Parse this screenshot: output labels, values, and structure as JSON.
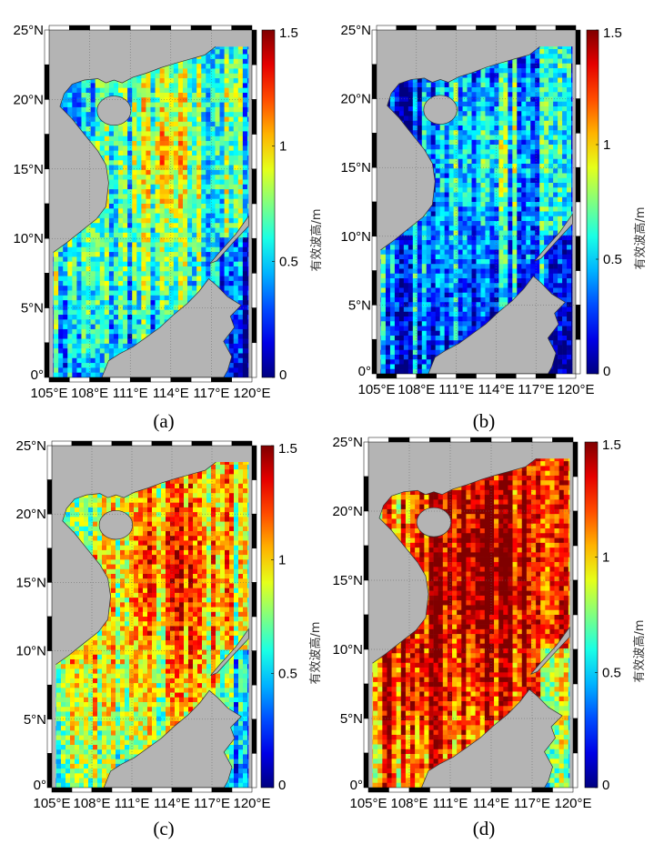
{
  "chart_data": [
    {
      "type": "heatmap",
      "caption": "(a)",
      "colorbar_label": "有效波高/m",
      "mean_level": 0.62,
      "pattern": "higher (1.0–1.5 m) in central-north basin, lower (0.2–0.4 m) in south and Sulu Sea"
    },
    {
      "type": "heatmap",
      "caption": "(b)",
      "colorbar_label": "有效波高/m",
      "mean_level": 0.45,
      "pattern": "mostly 0.2–0.7 m, occasional streaks near 1.2 m in central basin"
    },
    {
      "type": "heatmap",
      "caption": "(c)",
      "colorbar_label": "有效波高/m",
      "mean_level": 0.95,
      "pattern": "high (1.2–1.5 m) in central-east basin, 0.5–1.0 m near coasts, low in Sulu Sea"
    },
    {
      "type": "heatmap",
      "caption": "(d)",
      "colorbar_label": "有效波高/m",
      "mean_level": 1.3,
      "pattern": "mostly saturated >1.4 m across basin, 0.5–1.0 m near western coast and Gulf of Tonkin"
    }
  ],
  "axes": {
    "xlim": [
      105,
      120
    ],
    "ylim": [
      0,
      25
    ],
    "x_ticks": [
      "105°E",
      "108°E",
      "111°E",
      "114°E",
      "117°E",
      "120°E"
    ],
    "y_ticks": [
      "0°",
      "5°N",
      "10°N",
      "15°N",
      "20°N",
      "25°N"
    ],
    "colorbar_range": [
      0,
      1.5
    ],
    "colorbar_ticks": [
      "0",
      "0.5",
      "1",
      "1.5"
    ],
    "colormap": "jet",
    "land_color": "#b4b4b4"
  }
}
